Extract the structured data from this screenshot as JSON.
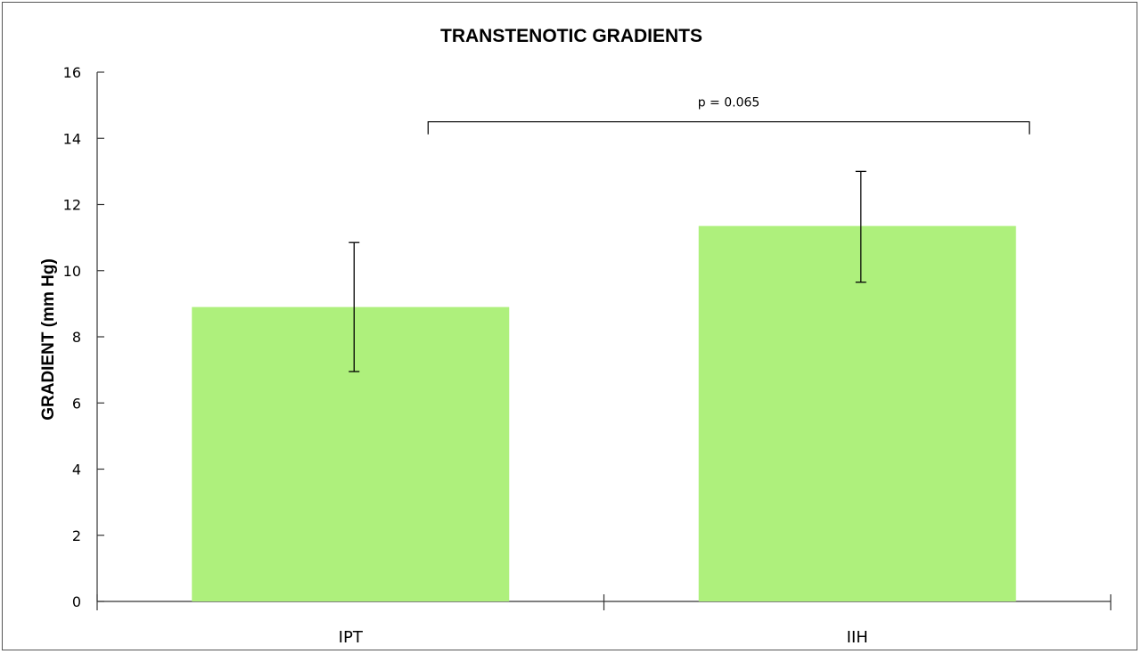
{
  "chart_data": {
    "type": "bar",
    "title": "TRANSTENOTIC GRADIENTS",
    "xlabel": "",
    "ylabel": "GRADIENT (mm Hg)",
    "ylim": [
      0,
      16
    ],
    "yticks": [
      "0",
      "2",
      "4",
      "6",
      "8",
      "10",
      "12",
      "14",
      "16"
    ],
    "categories": [
      "IPT",
      "IIH"
    ],
    "values": [
      8.9,
      11.35
    ],
    "error_low": [
      6.95,
      9.65
    ],
    "error_high": [
      10.85,
      13.0
    ],
    "bar_color": "#aef07c",
    "grid": false,
    "annotation": {
      "text": "p = 0.065",
      "from": "IPT",
      "to": "IIH"
    }
  }
}
